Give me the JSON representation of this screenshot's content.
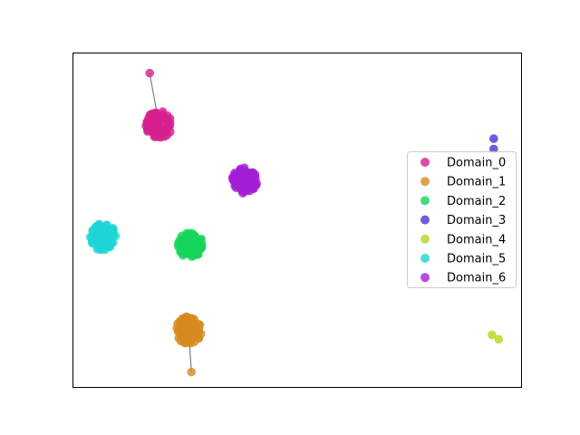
{
  "chart_data": {
    "type": "scatter",
    "title": "",
    "xlabel": "",
    "ylabel": "",
    "xlim": [
      0,
      100
    ],
    "ylim": [
      0,
      100
    ],
    "grid": false,
    "axis_ticks": false,
    "legend_position": "center-right",
    "series": [
      {
        "name": "Domain_0",
        "color": "#d6218f",
        "cluster": {
          "x": 19.2,
          "y": 78.5,
          "rx": 4.0,
          "ry": 5.5,
          "count": 80
        },
        "outliers": [
          {
            "x": 17.1,
            "y": 94.0
          }
        ],
        "links": [
          [
            {
              "x": 17.1,
              "y": 94.0
            },
            {
              "x": 19.2,
              "y": 78.5
            }
          ]
        ]
      },
      {
        "name": "Domain_1",
        "color": "#d68a1e",
        "cluster": {
          "x": 25.8,
          "y": 17.1,
          "rx": 3.8,
          "ry": 5.5,
          "count": 80
        },
        "outliers": [
          {
            "x": 26.4,
            "y": 4.6
          }
        ],
        "links": [
          [
            {
              "x": 26.4,
              "y": 4.6
            },
            {
              "x": 25.8,
              "y": 17.1
            }
          ]
        ]
      },
      {
        "name": "Domain_2",
        "color": "#17d45a",
        "cluster": {
          "x": 26.2,
          "y": 42.5,
          "rx": 3.8,
          "ry": 5.2,
          "count": 80
        },
        "outliers": [],
        "links": []
      },
      {
        "name": "Domain_3",
        "color": "#4a33d4",
        "cluster": null,
        "outliers": [
          {
            "x": 93.8,
            "y": 74.4
          },
          {
            "x": 93.8,
            "y": 71.3
          }
        ],
        "links": []
      },
      {
        "name": "Domain_4",
        "color": "#b5d61e",
        "cluster": null,
        "outliers": [
          {
            "x": 93.4,
            "y": 15.7
          },
          {
            "x": 94.9,
            "y": 14.4
          }
        ],
        "links": []
      },
      {
        "name": "Domain_5",
        "color": "#1ed4d4",
        "cluster": {
          "x": 6.7,
          "y": 45.0,
          "rx": 3.8,
          "ry": 5.5,
          "count": 80
        },
        "outliers": [],
        "links": []
      },
      {
        "name": "Domain_6",
        "color": "#a21ed4",
        "cluster": {
          "x": 38.3,
          "y": 61.8,
          "rx": 3.8,
          "ry": 5.5,
          "count": 80
        },
        "outliers": [],
        "links": []
      }
    ]
  }
}
